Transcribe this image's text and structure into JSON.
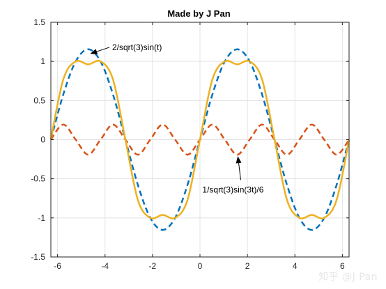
{
  "chart_data": {
    "type": "line",
    "title": "Made by J Pan",
    "xlabel": "",
    "ylabel": "",
    "xlim": [
      -6.2832,
      6.2832
    ],
    "ylim": [
      -1.5,
      1.5
    ],
    "xticks": [
      -6,
      -4,
      -2,
      0,
      2,
      4,
      6
    ],
    "yticks": [
      -1.5,
      -1,
      -0.5,
      0,
      0.5,
      1,
      1.5
    ],
    "xtick_labels": [
      "-6",
      "-4",
      "-2",
      "0",
      "2",
      "4",
      "6"
    ],
    "ytick_labels": [
      "-1.5",
      "-1",
      "-0.5",
      "0",
      "0.5",
      "1",
      "1.5"
    ],
    "grid": true,
    "x_samples": [
      -6.2832,
      -5.7596,
      -5.236,
      -4.7124,
      -4.1888,
      -3.6652,
      -3.1416,
      -2.618,
      -2.0944,
      -1.5708,
      -1.0472,
      -0.5236,
      0,
      0.5236,
      1.0472,
      1.5708,
      2.0944,
      2.618,
      3.1416,
      3.6652,
      4.1888,
      4.7124,
      5.236,
      5.7596,
      6.2832
    ],
    "series": [
      {
        "style": "dashed",
        "color": "#0072BD",
        "values": [
          0,
          0.5774,
          1.0,
          1.1547,
          1.0,
          0.5774,
          0,
          -0.5774,
          -1.0,
          -1.1547,
          -1.0,
          -0.5774,
          0,
          0.5774,
          1.0,
          1.1547,
          1.0,
          0.5774,
          0,
          -0.5774,
          -1.0,
          -1.1547,
          -1.0,
          -0.5774,
          0
        ]
      },
      {
        "style": "dashed",
        "color": "#D95319",
        "values": [
          0,
          0.1925,
          0,
          -0.1925,
          0,
          0.1925,
          0,
          -0.1925,
          0,
          0.1925,
          0,
          -0.1925,
          0,
          0.1925,
          0,
          -0.1925,
          0,
          0.1925,
          0,
          -0.1925,
          0,
          0.1925,
          0,
          -0.1925,
          0
        ]
      },
      {
        "style": "solid",
        "color": "#EDB120",
        "values": [
          0,
          0.7698,
          1.0,
          0.9623,
          1.0,
          0.7698,
          0,
          -0.7698,
          -1.0,
          -0.9623,
          -1.0,
          -0.7698,
          0,
          0.7698,
          1.0,
          0.9623,
          1.0,
          0.7698,
          0,
          -0.7698,
          -1.0,
          -0.9623,
          -1.0,
          -0.7698,
          0
        ]
      }
    ],
    "annotations": [
      {
        "text": "2/sqrt(3)sin(t)",
        "point": [
          -4.6,
          1.1
        ],
        "text_at": [
          -3.7,
          1.18
        ]
      },
      {
        "text": "1/sqrt(3)sin(3t)/6",
        "point": [
          1.6,
          -0.22
        ],
        "text_at": [
          0.1,
          -0.64
        ]
      }
    ]
  },
  "watermark": "知乎 @J Pan"
}
